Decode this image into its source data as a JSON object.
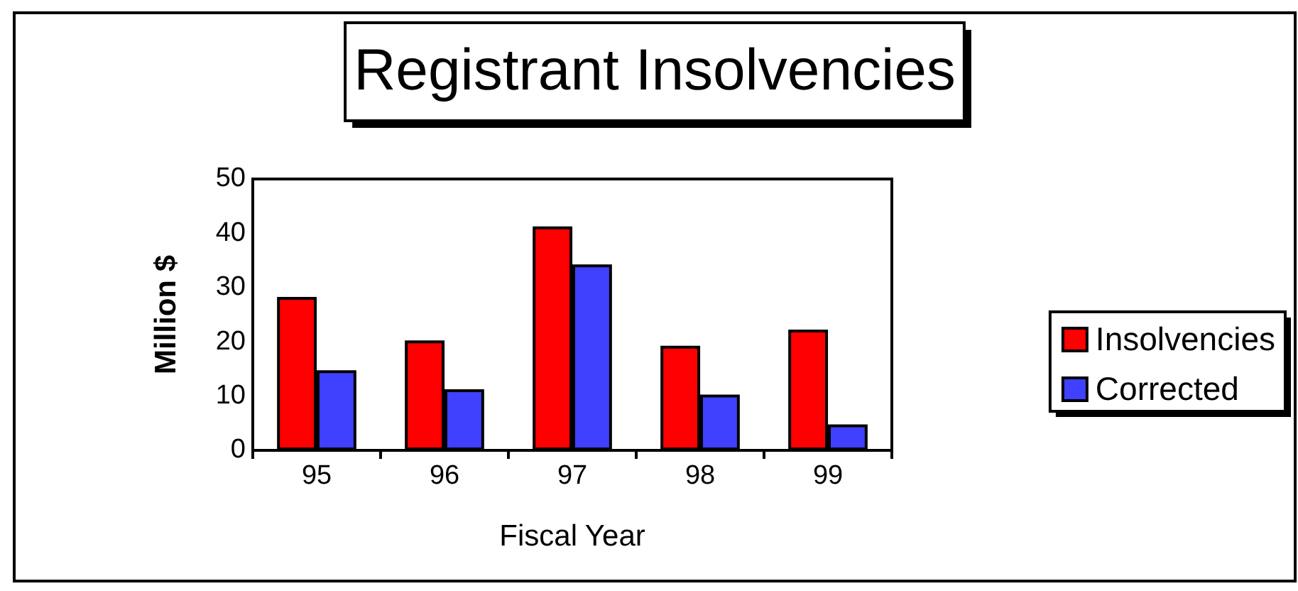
{
  "chart_data": {
    "type": "bar",
    "title": "Registrant Insolvencies",
    "xlabel": "Fiscal Year",
    "ylabel": "Million $",
    "categories": [
      "95",
      "96",
      "97",
      "98",
      "99"
    ],
    "series": [
      {
        "name": "Insolvencies",
        "color": "#ff0000",
        "values": [
          28,
          20,
          41,
          19,
          22
        ]
      },
      {
        "name": "Corrected",
        "color": "#4040ff",
        "values": [
          14.5,
          11,
          34,
          10,
          4.5
        ]
      }
    ],
    "ylim": [
      0,
      50
    ],
    "yticks": [
      0,
      10,
      20,
      30,
      40,
      50
    ],
    "legend": "right"
  }
}
